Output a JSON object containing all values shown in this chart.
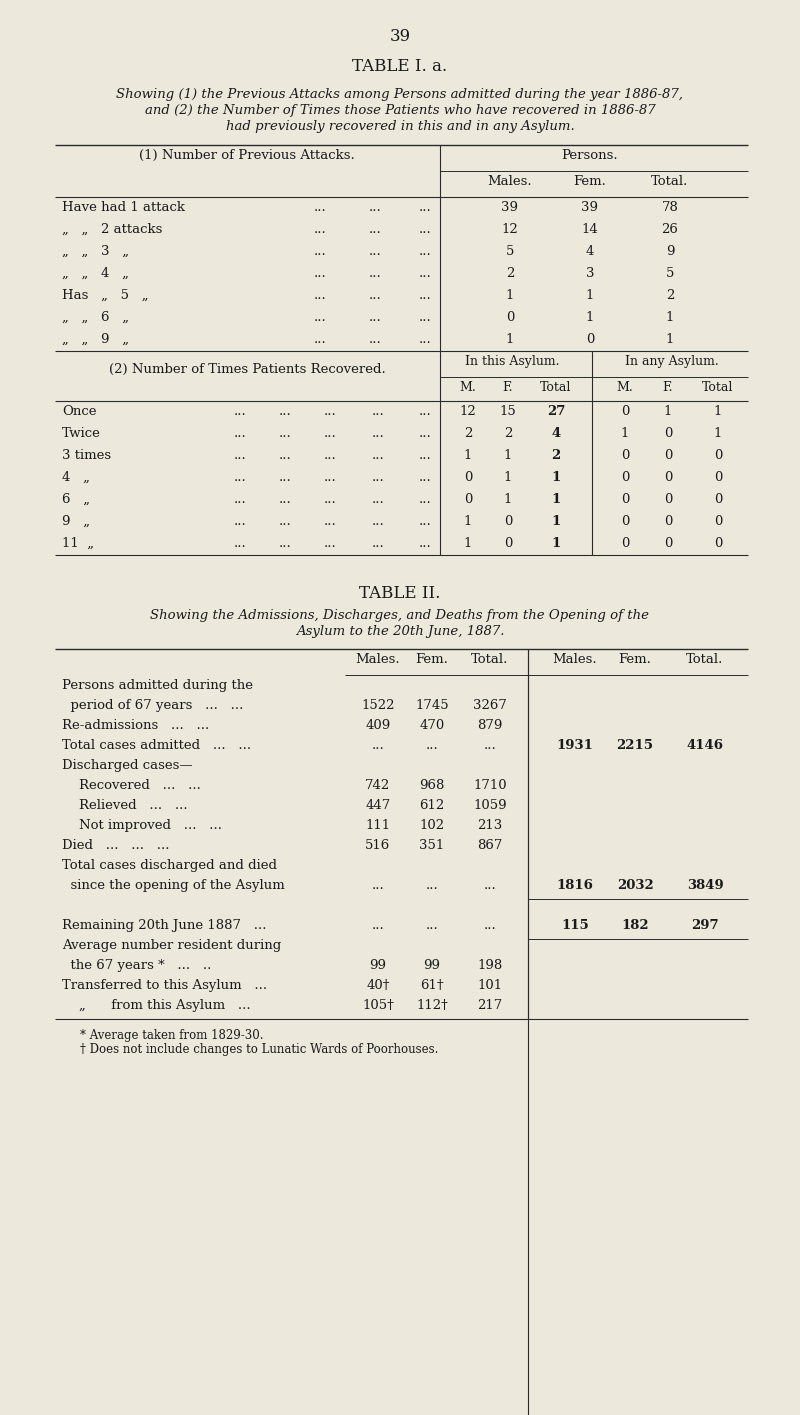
{
  "bg_color": "#ede8dc",
  "text_color": "#1a1a1a",
  "page_number": "39",
  "table1_title": "TABLE I. a.",
  "table1_sub1": "Showing (1) the Previous Attacks among Persons admitted during the year 1886-87,",
  "table1_sub2": "and (2) the Number of Times those Patients who have recovered in 1886-87",
  "table1_sub3": "had previously recovered in this and in any Asylum.",
  "table2_title": "TABLE II.",
  "table2_sub1": "Showing the Admissions, Discharges, and Deaths from the Opening of the",
  "table2_sub2": "Asylum to the 20th June, 1887.",
  "footnote1": "* Average taken from 1829-30.",
  "footnote2": "† Does not include changes to Lunatic Wards of Poorhouses."
}
